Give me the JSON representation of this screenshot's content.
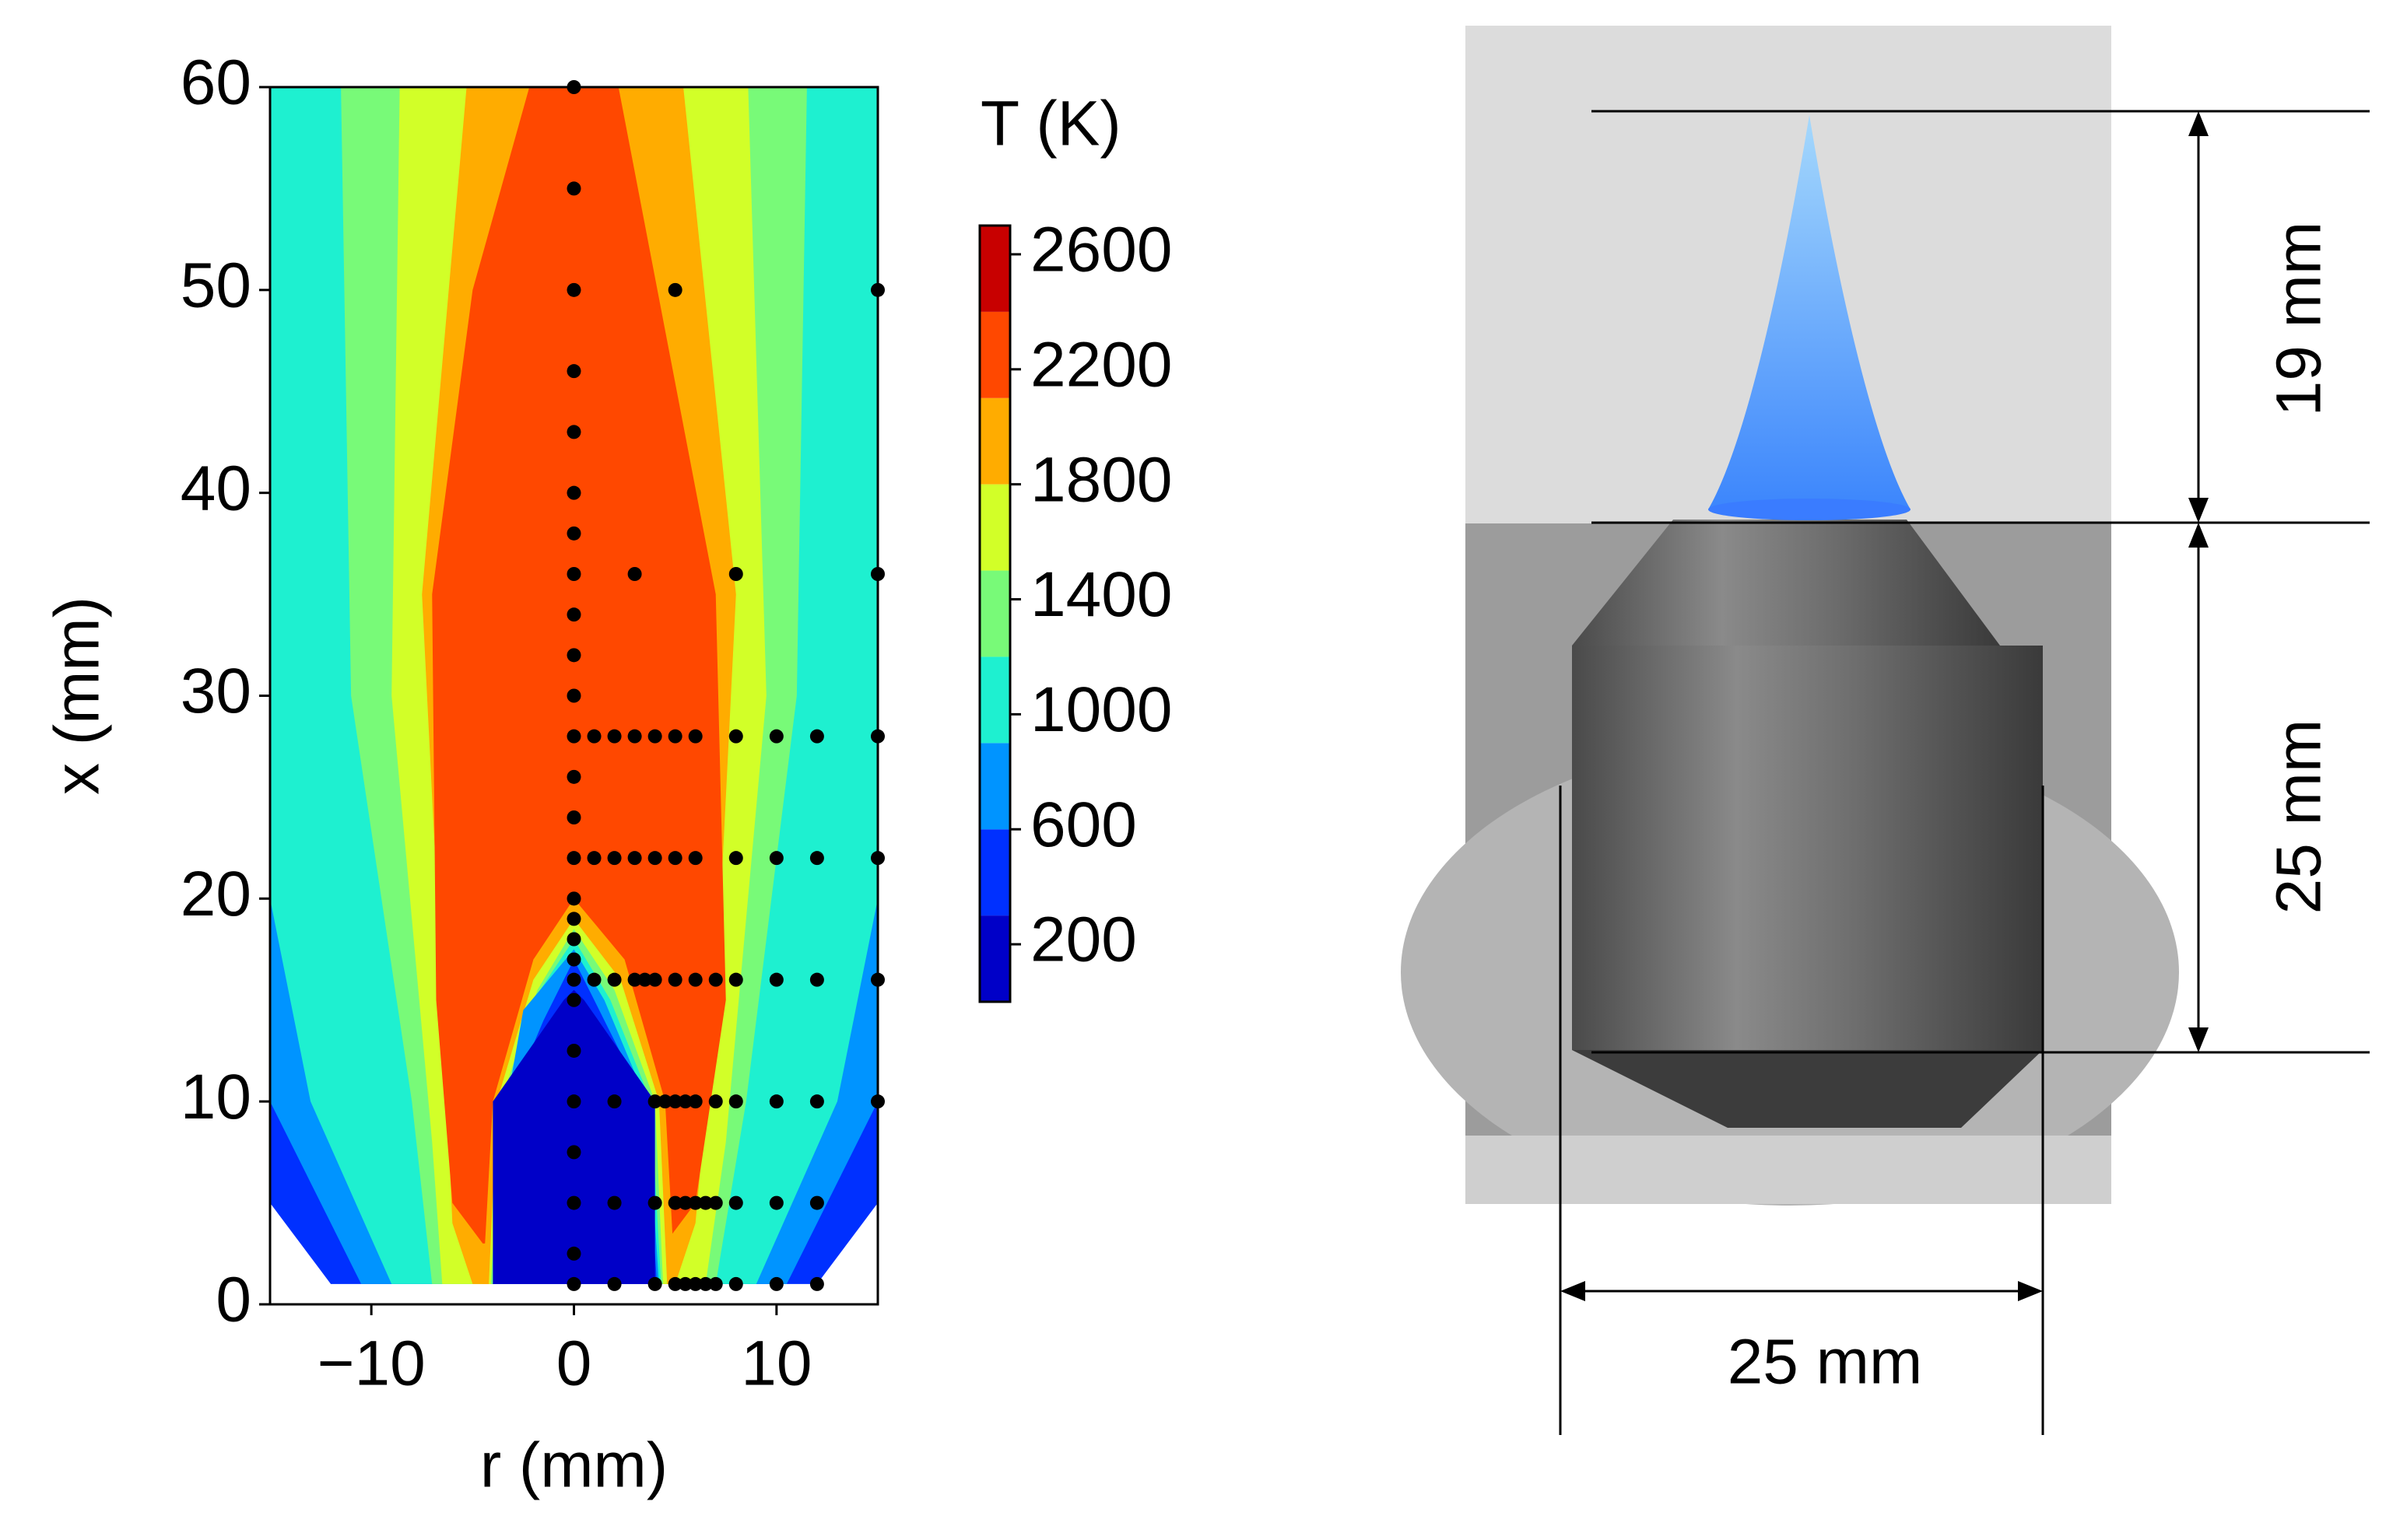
{
  "chart_data": {
    "type": "contour",
    "xlabel": "r (mm)",
    "ylabel": "x (mm)",
    "xlim": [
      -15,
      15
    ],
    "ylim": [
      0,
      60
    ],
    "xticks": [
      {
        "value": -10,
        "label": "−10"
      },
      0,
      10
    ],
    "yticks": [
      0,
      10,
      20,
      30,
      40,
      50,
      60
    ],
    "colorbar": {
      "label": "T (K)",
      "levels": [
        0,
        300,
        600,
        900,
        1200,
        1500,
        1800,
        2100,
        2400,
        2700
      ],
      "colors": [
        "#0000c8",
        "#0030ff",
        "#0094ff",
        "#1ef0d0",
        "#78fa78",
        "#d2ff28",
        "#ffac00",
        "#ff4800",
        "#c80000"
      ],
      "ticks": [
        200,
        600,
        1000,
        1400,
        1800,
        2200,
        2600
      ]
    },
    "contours": [
      {
        "value": 300,
        "r": [
          -15,
          -12,
          12,
          15,
          15,
          -15
        ],
        "x": [
          5,
          1,
          1,
          5,
          60,
          60
        ]
      },
      {
        "value": 600,
        "r": [
          -15,
          -10.5,
          10.5,
          15,
          15,
          -15
        ],
        "x": [
          10,
          1,
          1,
          10,
          60,
          60
        ]
      },
      {
        "value": 900,
        "r": [
          -15,
          -13,
          -9,
          9,
          13,
          15,
          15,
          -15
        ],
        "x": [
          20,
          10,
          1,
          1,
          10,
          20,
          60,
          60
        ]
      },
      {
        "value": 1200,
        "r": [
          -11.5,
          -11,
          -8,
          -7,
          7,
          8.5,
          11,
          11.5
        ],
        "x": [
          60,
          30,
          10,
          1,
          1,
          10,
          30,
          60
        ]
      },
      {
        "value": 1500,
        "r": [
          -8.6,
          -9,
          -7,
          -6.5,
          6.5,
          7.5,
          9.5,
          8.6
        ],
        "x": [
          60,
          30,
          8,
          1,
          1,
          8,
          30,
          60
        ]
      },
      {
        "value": 1800,
        "r": [
          -5.3,
          -7.5,
          -6.5,
          -6,
          -5,
          5,
          6,
          7,
          8,
          5.4
        ],
        "x": [
          60,
          35,
          15,
          4,
          1,
          1,
          4,
          15,
          35,
          60
        ]
      },
      {
        "value": 2100,
        "r": [
          -2.2,
          -5,
          -7,
          -6.8,
          -6,
          -4.5,
          4.5,
          6,
          7.5,
          7,
          2.2
        ],
        "x": [
          60,
          50,
          35,
          15,
          5,
          3,
          3,
          5,
          15,
          35,
          60
        ]
      },
      {
        "value": 1800,
        "r": [
          -4.5,
          -4,
          -2,
          0,
          2.5,
          4.5,
          5
        ],
        "x": [
          1,
          10,
          17,
          20,
          17,
          10,
          1
        ]
      },
      {
        "value": 1500,
        "r": [
          -4.2,
          -3.8,
          -2,
          0,
          2.3,
          4.2,
          4.6
        ],
        "x": [
          1,
          10,
          16,
          19,
          16,
          10,
          1
        ]
      },
      {
        "value": 1200,
        "r": [
          -4.1,
          -3.6,
          -1.8,
          0,
          2,
          4,
          4.4
        ],
        "x": [
          1,
          10,
          15.5,
          18.5,
          15.5,
          10,
          1
        ]
      },
      {
        "value": 900,
        "r": [
          -4,
          -3.4,
          -2,
          0,
          1.8,
          3.8,
          4.3
        ],
        "x": [
          1,
          10,
          15,
          18,
          15,
          10,
          1
        ]
      },
      {
        "value": 600,
        "r": [
          -4,
          -3.3,
          -2.5,
          0,
          1.5,
          3.6,
          4.2
        ],
        "x": [
          1,
          10,
          14.5,
          17.5,
          15,
          10,
          1
        ]
      },
      {
        "value": 300,
        "r": [
          -4,
          -3.2,
          -1.5,
          0,
          1.5,
          3.5,
          4.1
        ],
        "x": [
          1,
          10,
          14,
          17,
          14,
          10,
          1
        ]
      },
      {
        "value": 0,
        "r": [
          -4,
          -4,
          -0.5,
          0,
          0.5,
          4,
          4
        ],
        "x": [
          1,
          10,
          15,
          15.5,
          15,
          10,
          1
        ]
      }
    ],
    "points": {
      "r": [
        0,
        0,
        0,
        0,
        0,
        0,
        0,
        0,
        0,
        0,
        0,
        0,
        0,
        0,
        0,
        0,
        0,
        0,
        0,
        0,
        0,
        0,
        0,
        0,
        0,
        0,
        0,
        2,
        4,
        5,
        5.5,
        6,
        6.5,
        7,
        8,
        10,
        12,
        2,
        4,
        5,
        5.5,
        6,
        6.5,
        7,
        8,
        10,
        12,
        2,
        4,
        4.5,
        5,
        5.5,
        6,
        7,
        8,
        10,
        12,
        15,
        1,
        2,
        3,
        3.5,
        4,
        5,
        6,
        7,
        8,
        10,
        12,
        15,
        1,
        2,
        3,
        4,
        5,
        6,
        8,
        10,
        12,
        15,
        1,
        2,
        3,
        4,
        5,
        6,
        8,
        10,
        12,
        15,
        3,
        8,
        15,
        5,
        15
      ],
      "x": [
        1,
        2.5,
        5,
        7.5,
        10,
        12.5,
        15,
        16,
        17,
        18,
        19,
        20,
        22,
        24,
        26,
        28,
        30,
        32,
        34,
        36,
        38,
        40,
        43,
        46,
        50,
        55,
        60,
        1,
        1,
        1,
        1,
        1,
        1,
        1,
        1,
        1,
        1,
        5,
        5,
        5,
        5,
        5,
        5,
        5,
        5,
        5,
        5,
        10,
        10,
        10,
        10,
        10,
        10,
        10,
        10,
        10,
        10,
        10,
        16,
        16,
        16,
        16,
        16,
        16,
        16,
        16,
        16,
        16,
        16,
        16,
        22,
        22,
        22,
        22,
        22,
        22,
        22,
        22,
        22,
        22,
        28,
        28,
        28,
        28,
        28,
        28,
        28,
        28,
        28,
        28,
        36,
        36,
        36,
        50,
        50
      ]
    }
  },
  "photo": {
    "labels": [
      "19 mm",
      "25 mm",
      "25 mm"
    ]
  }
}
